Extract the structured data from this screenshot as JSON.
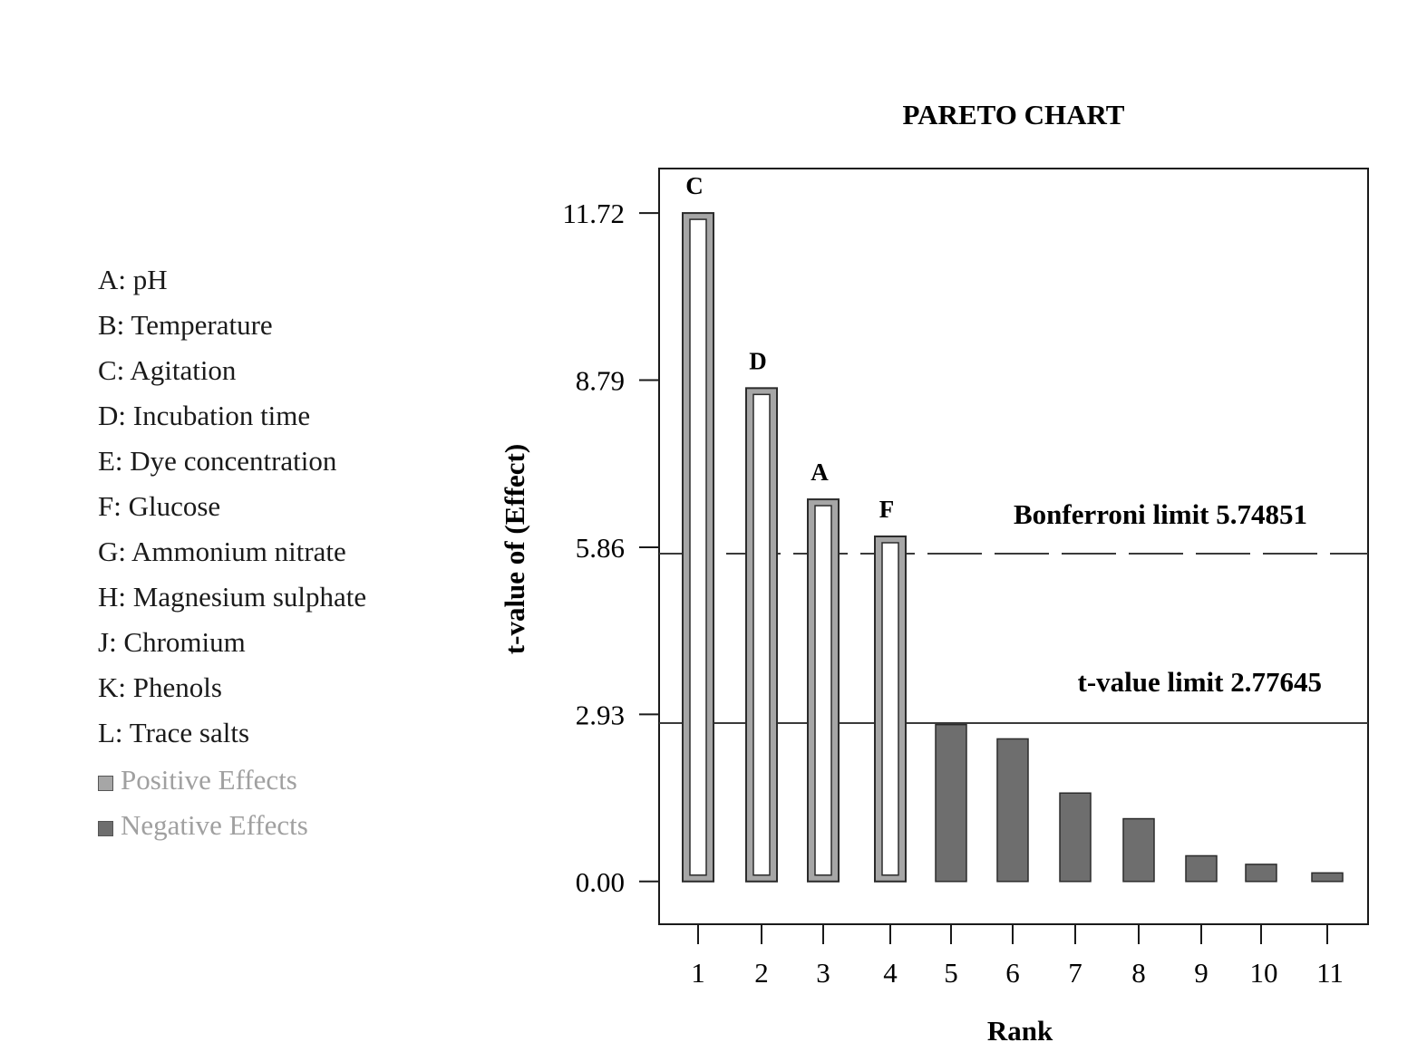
{
  "legend": {
    "factors": [
      "A: pH",
      "B: Temperature",
      "C: Agitation",
      "D: Incubation time",
      "E: Dye concentration",
      "F: Glucose",
      "G: Ammonium nitrate",
      "H: Magnesium sulphate",
      "J: Chromium",
      "K: Phenols",
      "L: Trace salts"
    ],
    "positive_label": "Positive Effects",
    "negative_label": "Negative Effects"
  },
  "colors": {
    "positive": "#a6a6a6",
    "negative": "#6e6e6e",
    "bar_stroke": "#2b2b2b",
    "axis": "#1a1a1a",
    "legend_text_muted": "#a0a0a0"
  },
  "chart_data": {
    "type": "bar",
    "title": "PARETO CHART",
    "xlabel": "Rank",
    "ylabel": "t-value of (Effect)",
    "categories": [
      "1",
      "2",
      "3",
      "4",
      "5",
      "6",
      "7",
      "8",
      "9",
      "10",
      "11"
    ],
    "values": [
      11.72,
      8.65,
      6.7,
      6.05,
      2.75,
      2.5,
      1.55,
      1.1,
      0.45,
      0.3,
      0.15
    ],
    "effect_sign": [
      "positive",
      "positive",
      "positive",
      "positive",
      "negative",
      "negative",
      "negative",
      "negative",
      "negative",
      "negative",
      "negative"
    ],
    "bar_labels": [
      "C",
      "D",
      "A",
      "F",
      "",
      "",
      "",
      "",
      "",
      "",
      ""
    ],
    "yticks": [
      0.0,
      2.93,
      5.86,
      8.79,
      11.72
    ],
    "ytick_labels": [
      "0.00",
      "2.93",
      "5.86",
      "8.79",
      "11.72"
    ],
    "ylim": [
      -0.75,
      12.5
    ],
    "reference_lines": [
      {
        "label": "Bonferroni limit 5.74851",
        "value": 5.74851
      },
      {
        "label": "t-value limit 2.77645",
        "value": 2.77645
      }
    ],
    "grid": false,
    "legend_position": "left"
  }
}
